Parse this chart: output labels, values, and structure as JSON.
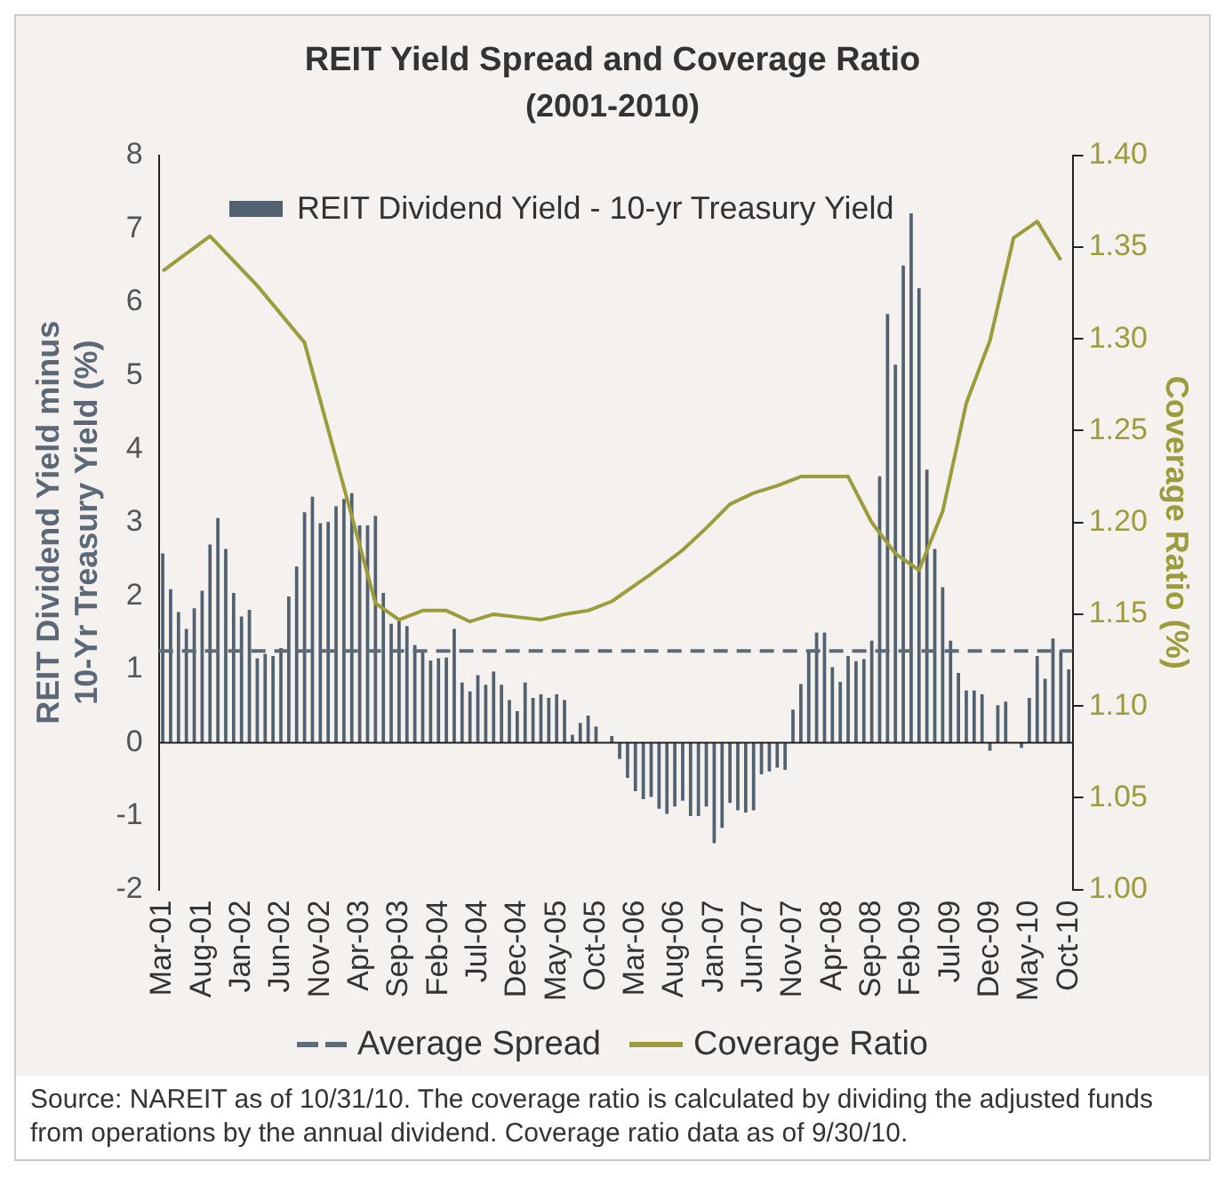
{
  "chart_data": {
    "type": "bar",
    "title": "REIT Yield Spread and Coverage Ratio",
    "subtitle": "(2001-2010)",
    "ylabel": "REIT Dividend Yield minus\n10-Yr Treasury Yield (%)",
    "y2label": "Coverage Ratio (%)",
    "categories": [
      "Mar-01",
      null,
      null,
      null,
      null,
      "Aug-01",
      null,
      null,
      null,
      null,
      "Jan-02",
      null,
      null,
      null,
      null,
      "Jun-02",
      null,
      null,
      null,
      null,
      "Nov-02",
      null,
      null,
      null,
      null,
      "Apr-03",
      null,
      null,
      null,
      null,
      "Sep-03",
      null,
      null,
      null,
      null,
      "Feb-04",
      null,
      null,
      null,
      null,
      "Jul-04",
      null,
      null,
      null,
      null,
      "Dec-04",
      null,
      null,
      null,
      null,
      "May-05",
      null,
      null,
      null,
      null,
      "Oct-05",
      null,
      null,
      null,
      null,
      "Mar-06",
      null,
      null,
      null,
      null,
      "Aug-06",
      null,
      null,
      null,
      null,
      "Jan-07",
      null,
      null,
      null,
      null,
      "Jun-07",
      null,
      null,
      null,
      null,
      "Nov-07",
      null,
      null,
      null,
      null,
      "Apr-08",
      null,
      null,
      null,
      null,
      "Sep-08",
      null,
      null,
      null,
      null,
      "Feb-09",
      null,
      null,
      null,
      null,
      "Jul-09",
      null,
      null,
      null,
      null,
      "Dec-09",
      null,
      null,
      null,
      null,
      "May-10",
      null,
      null,
      null,
      null,
      "Oct-10"
    ],
    "series": [
      {
        "name": "REIT Dividend Yield - 10-yr Treasury Yield",
        "color": "#526170",
        "values": [
          2.58,
          2.09,
          1.78,
          1.55,
          1.83,
          2.07,
          2.7,
          3.06,
          2.64,
          2.04,
          1.72,
          1.81,
          1.15,
          1.21,
          1.18,
          1.29,
          1.99,
          2.4,
          3.14,
          3.35,
          2.99,
          3.01,
          3.22,
          3.32,
          3.4,
          2.96,
          2.96,
          3.09,
          2.04,
          1.62,
          1.67,
          1.59,
          1.33,
          1.23,
          1.12,
          1.15,
          1.16,
          1.55,
          0.82,
          0.7,
          0.92,
          0.79,
          0.97,
          0.79,
          0.58,
          0.43,
          0.82,
          0.61,
          0.66,
          0.61,
          0.66,
          0.58,
          0.11,
          0.27,
          0.37,
          0.22,
          0,
          0.09,
          -0.22,
          -0.48,
          -0.66,
          -0.77,
          -0.74,
          -0.9,
          -0.97,
          -0.87,
          -0.79,
          -1.0,
          -1.0,
          -0.87,
          -1.37,
          -1.16,
          -0.82,
          -0.92,
          -0.95,
          -0.92,
          -0.43,
          -0.39,
          -0.34,
          -0.37,
          0.45,
          0.8,
          1.23,
          1.5,
          1.5,
          1.03,
          0.83,
          1.18,
          1.11,
          1.14,
          1.39,
          3.63,
          5.84,
          5.15,
          6.5,
          7.21,
          6.19,
          3.72,
          2.64,
          2.12,
          1.39,
          0.95,
          0.71,
          0.71,
          0.66,
          -0.11,
          0.51,
          0.56,
          0,
          -0.07,
          0.61,
          1.18,
          0.87,
          1.42,
          1.26,
          1.0
        ]
      },
      {
        "name": "Coverage Ratio",
        "type": "line",
        "axis": "y2",
        "color": "#9c9c3c",
        "values": [
          1.337,
          null,
          null,
          null,
          null,
          null,
          1.356,
          null,
          null,
          null,
          null,
          null,
          1.329,
          null,
          null,
          null,
          null,
          null,
          1.298,
          null,
          null,
          null,
          null,
          null,
          null,
          null,
          null,
          1.156,
          null,
          null,
          1.147,
          null,
          null,
          1.152,
          null,
          null,
          1.152,
          null,
          null,
          1.146,
          null,
          null,
          1.15,
          null,
          null,
          null,
          null,
          null,
          1.147,
          null,
          null,
          1.15,
          null,
          null,
          1.152,
          null,
          null,
          1.157,
          null,
          null,
          null,
          null,
          1.172,
          null,
          null,
          null,
          1.185,
          null,
          null,
          1.197,
          null,
          null,
          1.21,
          null,
          null,
          1.216,
          null,
          null,
          1.22,
          null,
          null,
          1.225,
          null,
          null,
          null,
          null,
          null,
          1.225,
          null,
          null,
          1.2,
          null,
          null,
          1.183,
          null,
          null,
          1.174,
          null,
          null,
          1.206,
          null,
          null,
          1.265,
          null,
          null,
          1.299,
          null,
          null,
          1.355,
          null,
          null,
          1.364,
          null,
          null,
          1.343,
          null
        ]
      }
    ],
    "ylim": [
      -2,
      8
    ],
    "yticks": [
      -2,
      -1,
      0,
      1,
      2,
      3,
      4,
      5,
      6,
      7,
      8
    ],
    "y2lim": [
      1.0,
      1.4
    ],
    "y2ticks": [
      {
        "value": 1.0,
        "label": "1.00"
      },
      {
        "value": 1.05,
        "label": "1.05"
      },
      {
        "value": 1.1,
        "label": "1.10"
      },
      {
        "value": 1.15,
        "label": "1.15"
      },
      {
        "value": 1.2,
        "label": "1.20"
      },
      {
        "value": 1.25,
        "label": "1.25"
      },
      {
        "value": 1.3,
        "label": "1.30"
      },
      {
        "value": 1.35,
        "label": "1.35"
      },
      {
        "value": 1.4,
        "label": "1.40"
      }
    ],
    "ref_lines": [
      {
        "axis": "y",
        "value": 1.25,
        "label": "Average Spread",
        "color": "#5d6b79",
        "line_style": "dashed"
      }
    ],
    "legend": "bottom",
    "marker": "none",
    "line_style": "solid",
    "annotations": [
      "Source: NAREIT as of 10/31/10. The coverage ratio is calculated by dividing the adjusted funds from operations by the annual dividend. Coverage ratio data as of 9/30/10."
    ]
  }
}
